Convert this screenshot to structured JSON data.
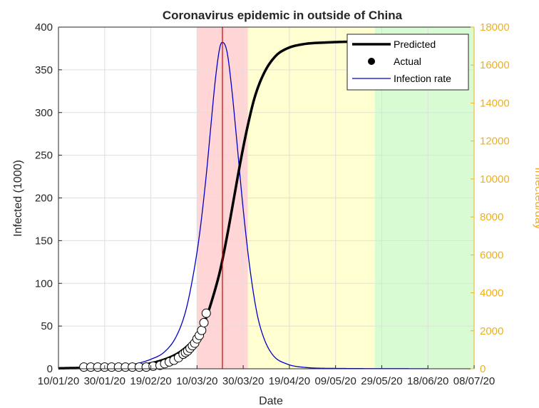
{
  "chart_data": {
    "type": "line",
    "title": "Coronavirus epidemic in outside of China",
    "xlabel": "Date",
    "ylabel": "Infected (1000)",
    "y2label": "Infected/day",
    "x_range": [
      "2020-01-10",
      "2020-07-08"
    ],
    "x_tick_dates": [
      "2020-01-10",
      "2020-01-30",
      "2020-02-19",
      "2020-03-10",
      "2020-03-30",
      "2020-04-19",
      "2020-05-09",
      "2020-05-29",
      "2020-06-18",
      "2020-07-08"
    ],
    "x_tick_labels": [
      "10/01/20",
      "30/01/20",
      "19/02/20",
      "10/03/20",
      "30/03/20",
      "19/04/20",
      "09/05/20",
      "29/05/20",
      "18/06/20",
      "08/07/20"
    ],
    "ylim": [
      0,
      400
    ],
    "y_ticks": [
      0,
      50,
      100,
      150,
      200,
      250,
      300,
      350,
      400
    ],
    "y2lim": [
      0,
      18000
    ],
    "y2_ticks": [
      0,
      2000,
      4000,
      6000,
      8000,
      10000,
      12000,
      14000,
      16000,
      18000
    ],
    "grid": true,
    "legend_position": "top-right",
    "shaded_regions": [
      {
        "start": "2020-03-10",
        "end": "2020-04-01",
        "color": "#FFD5D5"
      },
      {
        "start": "2020-04-01",
        "end": "2020-05-26",
        "color": "#FFFED0"
      },
      {
        "start": "2020-05-26",
        "end": "2020-07-08",
        "color": "#D9FBD4"
      }
    ],
    "peak_line_date": "2020-03-21",
    "peak_line_color": "#CC0000",
    "series": [
      {
        "name": "Predicted",
        "axis": "left",
        "color": "#000000",
        "dates": [
          "2020-01-10",
          "2020-02-10",
          "2020-02-20",
          "2020-03-01",
          "2020-03-06",
          "2020-03-11",
          "2020-03-14",
          "2020-03-17",
          "2020-03-20",
          "2020-03-23",
          "2020-03-26",
          "2020-03-29",
          "2020-04-01",
          "2020-04-04",
          "2020-04-08",
          "2020-04-13",
          "2020-04-18",
          "2020-04-25",
          "2020-05-05",
          "2020-05-20",
          "2020-06-05"
        ],
        "values": [
          0.5,
          3,
          7,
          17,
          27,
          42,
          60,
          85,
          115,
          155,
          200,
          245,
          285,
          318,
          346,
          366,
          375,
          380,
          382,
          383,
          383
        ]
      },
      {
        "name": "Actual",
        "axis": "left",
        "color": "#000000",
        "dates": [
          "2020-01-21",
          "2020-01-24",
          "2020-01-27",
          "2020-01-30",
          "2020-02-02",
          "2020-02-05",
          "2020-02-08",
          "2020-02-11",
          "2020-02-14",
          "2020-02-17",
          "2020-02-20",
          "2020-02-23",
          "2020-02-25",
          "2020-02-27",
          "2020-02-29",
          "2020-03-02",
          "2020-03-04",
          "2020-03-05",
          "2020-03-06",
          "2020-03-07",
          "2020-03-08",
          "2020-03-09",
          "2020-03-10",
          "2020-03-11",
          "2020-03-12",
          "2020-03-13",
          "2020-03-14"
        ],
        "values": [
          2,
          2,
          2,
          2,
          2,
          2,
          2,
          2,
          2,
          2,
          3,
          4,
          6,
          8,
          10,
          13,
          17,
          19,
          21,
          24,
          27,
          30,
          35,
          39,
          45,
          54,
          65
        ]
      },
      {
        "name": "Infection rate",
        "axis": "right",
        "color": "#0000CC",
        "dates": [
          "2020-01-10",
          "2020-01-30",
          "2020-02-10",
          "2020-02-19",
          "2020-02-25",
          "2020-03-01",
          "2020-03-05",
          "2020-03-08",
          "2020-03-11",
          "2020-03-14",
          "2020-03-16",
          "2020-03-18",
          "2020-03-20",
          "2020-03-21",
          "2020-03-23",
          "2020-03-25",
          "2020-03-27",
          "2020-03-30",
          "2020-04-02",
          "2020-04-05",
          "2020-04-08",
          "2020-04-12",
          "2020-04-18",
          "2020-04-25",
          "2020-05-09",
          "2020-06-18"
        ],
        "values": [
          0,
          80,
          200,
          500,
          900,
          1700,
          3000,
          4700,
          7000,
          10200,
          12800,
          15300,
          17000,
          17200,
          16700,
          14800,
          12300,
          8400,
          5200,
          2900,
          1600,
          700,
          250,
          80,
          20,
          5
        ]
      }
    ]
  }
}
